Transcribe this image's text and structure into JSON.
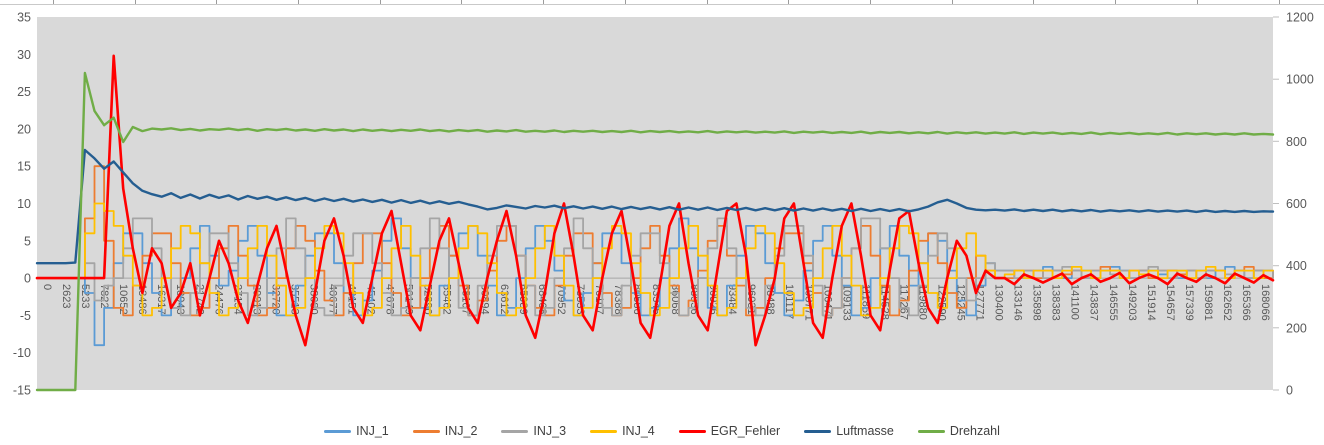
{
  "chart_data": {
    "type": "line",
    "title": "",
    "plot_bg": "#D9D9D9",
    "grid": "zero-line-only",
    "legend_position": "bottom",
    "axis_label_color": "#595959",
    "zero_line_color": "#A6A6A6",
    "left_axis": {
      "min": -15,
      "max": 35,
      "step": 5,
      "ticks": [
        35,
        30,
        25,
        20,
        15,
        10,
        5,
        0,
        -5,
        -10,
        -15
      ]
    },
    "right_axis": {
      "min": 0,
      "max": 1200,
      "step": 200,
      "ticks": [
        1200,
        1000,
        800,
        600,
        400,
        200,
        0
      ]
    },
    "x_range": [
      0,
      168066
    ],
    "n_points": 130,
    "x_labels": [
      "0",
      "2623",
      "5233",
      "7822",
      "10652",
      "13486",
      "16317",
      "18943",
      "21742",
      "24476",
      "27154",
      "29913",
      "32720",
      "35513",
      "38080",
      "40677",
      "43151",
      "45402",
      "47678",
      "50149",
      "52890",
      "55462",
      "58167",
      "60894",
      "63612",
      "65989",
      "68468",
      "70952",
      "73533",
      "76107",
      "78388",
      "80586",
      "83345",
      "86068",
      "88536",
      "90926",
      "93484",
      "96031",
      "98488",
      "101117",
      "103771",
      "106471",
      "109133",
      "111859",
      "114528",
      "117267",
      "119880",
      "122590",
      "125245",
      "127771",
      "130400",
      "133146",
      "135898",
      "138383",
      "141100",
      "143837",
      "146555",
      "149203",
      "151914",
      "154657",
      "157339",
      "159881",
      "162652",
      "165366",
      "168066"
    ],
    "series": [
      {
        "name": "INJ_1",
        "color": "#5B9BD5",
        "axis": "left",
        "interpolation": "step",
        "width": 1.8,
        "values": [
          0,
          0,
          0,
          0,
          0,
          -2,
          -9,
          -4,
          2,
          6,
          6,
          2,
          -2,
          -5,
          -4,
          0,
          4,
          7,
          3,
          -1,
          1,
          5,
          7,
          3,
          -2,
          -5,
          -5,
          -1,
          3,
          6,
          6,
          2,
          -2,
          -5,
          -3,
          1,
          5,
          8,
          4,
          0,
          -4,
          -5,
          -1,
          3,
          6,
          7,
          3,
          -1,
          -5,
          -4,
          0,
          4,
          7,
          5,
          1,
          -3,
          -5,
          -2,
          2,
          6,
          6,
          2,
          -2,
          -5,
          -4,
          0,
          4,
          8,
          4,
          0,
          -4,
          -5,
          -1,
          3,
          7,
          6,
          2,
          -2,
          -5,
          -3,
          1,
          5,
          7,
          3,
          -1,
          -5,
          -4,
          0,
          4,
          7,
          3,
          -1,
          2,
          6,
          5,
          1,
          -3,
          -5,
          -1,
          2,
          1,
          1,
          1,
          0,
          1,
          1.5,
          1,
          0,
          1,
          1,
          0,
          1,
          1.5,
          1,
          0,
          1,
          1,
          0.5,
          1,
          0,
          1,
          1,
          0,
          1,
          1.5,
          1,
          0,
          1,
          1,
          0.5
        ]
      },
      {
        "name": "INJ_2",
        "color": "#ED7D31",
        "axis": "left",
        "interpolation": "step",
        "width": 1.8,
        "values": [
          0,
          0,
          0,
          0,
          0,
          8,
          15,
          5,
          -4,
          -5,
          -1,
          3,
          6,
          6,
          2,
          -2,
          -5,
          -4,
          0,
          4,
          7,
          3,
          -1,
          -5,
          -4,
          0,
          4,
          7,
          5,
          1,
          -3,
          -5,
          -2,
          2,
          6,
          6,
          2,
          -2,
          -5,
          -4,
          0,
          4,
          7,
          3,
          -1,
          -5,
          -3,
          1,
          5,
          7,
          3,
          -1,
          -4,
          -5,
          -1,
          3,
          6,
          6,
          2,
          -2,
          -5,
          -4,
          0,
          4,
          7,
          3,
          -1,
          -5,
          -3,
          1,
          5,
          7,
          3,
          -1,
          -5,
          -4,
          0,
          4,
          6,
          6,
          2,
          -2,
          -5,
          -4,
          0,
          4,
          7,
          3,
          -1,
          -5,
          -3,
          1,
          5,
          6,
          2,
          -2,
          -4,
          0,
          3,
          1,
          0,
          0,
          1,
          1,
          0,
          1,
          1,
          0.5,
          1,
          0,
          1,
          1.5,
          1,
          0,
          1,
          1,
          0,
          1,
          1,
          0.5,
          1,
          0,
          1,
          1,
          0,
          1,
          1.5,
          1,
          0,
          1
        ]
      },
      {
        "name": "INJ_3",
        "color": "#A5A5A5",
        "axis": "left",
        "interpolation": "step",
        "width": 1.8,
        "values": [
          0,
          0,
          0,
          0,
          0,
          2,
          -3,
          -1,
          0,
          4,
          8,
          8,
          4,
          0,
          -4,
          -5,
          -2,
          2,
          6,
          6,
          2,
          -2,
          -5,
          -4,
          0,
          4,
          8,
          4,
          0,
          -4,
          -5,
          -1,
          3,
          6,
          6,
          2,
          -2,
          -5,
          -4,
          0,
          4,
          8,
          4,
          0,
          -4,
          -5,
          -1,
          3,
          7,
          7,
          3,
          -1,
          -5,
          -4,
          0,
          4,
          8,
          4,
          0,
          -4,
          -5,
          -1,
          3,
          6,
          6,
          2,
          -2,
          -5,
          -4,
          0,
          4,
          8,
          4,
          0,
          -4,
          -5,
          -1,
          3,
          7,
          7,
          3,
          -1,
          -5,
          -4,
          0,
          4,
          8,
          8,
          4,
          0,
          -4,
          -5,
          -1,
          3,
          6,
          4,
          0,
          -3,
          0,
          2,
          1,
          1,
          0,
          1,
          1,
          0,
          1,
          1.5,
          1,
          0,
          1,
          1,
          0.5,
          1,
          0,
          1,
          1.5,
          1,
          0,
          1,
          1,
          0,
          1,
          1,
          0.5,
          1,
          0,
          1,
          1,
          0
        ]
      },
      {
        "name": "INJ_4",
        "color": "#FFC000",
        "axis": "left",
        "interpolation": "step",
        "width": 1.8,
        "values": [
          0,
          0,
          0,
          0,
          0,
          6,
          10,
          9,
          7,
          3,
          -1,
          -5,
          -4,
          0,
          4,
          7,
          6,
          2,
          -2,
          -5,
          -4,
          0,
          4,
          7,
          3,
          -1,
          -5,
          -4,
          0,
          4,
          7,
          6,
          2,
          -2,
          -5,
          -4,
          0,
          4,
          7,
          3,
          -1,
          -5,
          -4,
          0,
          4,
          7,
          6,
          2,
          -2,
          -5,
          -4,
          0,
          4,
          7,
          3,
          -1,
          -5,
          -4,
          0,
          4,
          7,
          6,
          2,
          -2,
          -5,
          -4,
          0,
          4,
          7,
          3,
          -1,
          -5,
          -4,
          0,
          4,
          7,
          6,
          2,
          -2,
          -5,
          -4,
          0,
          4,
          7,
          3,
          -1,
          -5,
          -4,
          0,
          4,
          7,
          6,
          2,
          -2,
          -4,
          0,
          4,
          6,
          3,
          1,
          0,
          0.5,
          1,
          0,
          1,
          1,
          0,
          1,
          1.5,
          1,
          0,
          1,
          1,
          0,
          1,
          0.5,
          1,
          0,
          1,
          1,
          0,
          1,
          1.5,
          1,
          0,
          1,
          1,
          0,
          1,
          1
        ]
      },
      {
        "name": "EGR_Fehler",
        "color": "#FF0000",
        "axis": "left",
        "interpolation": "linear",
        "width": 2.6,
        "values": [
          0,
          0,
          0,
          0,
          0,
          0,
          0,
          0,
          29.8,
          12,
          4,
          -2,
          4,
          2,
          -4,
          -2,
          2,
          -5,
          0,
          5,
          2,
          -3,
          -6,
          -1,
          4,
          7,
          1,
          -5,
          -9,
          -2,
          5,
          8,
          3,
          -4,
          -6,
          0,
          6,
          9,
          2,
          -5,
          -7,
          -1,
          5,
          8,
          2,
          -4,
          -6,
          0,
          5,
          9,
          3,
          -5,
          -8,
          -2,
          6,
          10,
          3,
          -5,
          -7,
          0,
          6,
          9,
          2,
          -6,
          -8,
          -1,
          7,
          10,
          2,
          -5,
          -7,
          1,
          9,
          10,
          3,
          -9,
          -5,
          0,
          8,
          10,
          2,
          -6,
          -8,
          0,
          7,
          10,
          3,
          -5,
          -7,
          1,
          8,
          9,
          2,
          -4,
          -6,
          0,
          5,
          3,
          -2,
          1,
          0,
          0,
          -0.8,
          0.5,
          0,
          -0.6,
          0,
          0.6,
          -0.8,
          0,
          0.5,
          -0.5,
          0,
          0.7,
          -0.7,
          0,
          0.5,
          0,
          -0.8,
          0.6,
          0,
          -0.5,
          0.5,
          0,
          -0.7,
          0.6,
          0,
          -0.6,
          0.4,
          -0.3
        ]
      },
      {
        "name": "Luftmasse",
        "color": "#255E91",
        "axis": "right",
        "interpolation": "linear",
        "width": 2.4,
        "values": [
          408,
          408,
          408,
          408,
          410,
          772,
          745,
          712,
          735,
          700,
          665,
          641,
          630,
          622,
          633,
          618,
          629,
          616,
          628,
          618,
          626,
          613,
          624,
          615,
          622,
          612,
          620,
          611,
          618,
          608,
          616,
          608,
          615,
          606,
          613,
          605,
          612,
          603,
          611,
          602,
          609,
          600,
          607,
          599,
          605,
          597,
          590,
          581,
          586,
          594,
          589,
          584,
          592,
          587,
          593,
          585,
          591,
          584,
          590,
          583,
          590,
          582,
          589,
          582,
          588,
          581,
          588,
          580,
          587,
          580,
          587,
          579,
          586,
          579,
          586,
          578,
          585,
          578,
          585,
          577,
          584,
          577,
          584,
          577,
          583,
          576,
          583,
          576,
          582,
          576,
          582,
          575,
          581,
          590,
          604,
          612,
          600,
          586,
          580,
          578,
          580,
          577,
          581,
          576,
          580,
          576,
          580,
          575,
          579,
          575,
          579,
          574,
          578,
          575,
          578,
          574,
          578,
          574,
          577,
          574,
          577,
          573,
          577,
          573,
          576,
          573,
          576,
          573,
          575,
          574
        ]
      },
      {
        "name": "Drehzahl",
        "color": "#70AD47",
        "axis": "right",
        "interpolation": "linear",
        "width": 2.4,
        "values": [
          0,
          0,
          0,
          0,
          0,
          1020,
          898,
          852,
          876,
          798,
          846,
          833,
          841,
          838,
          842,
          836,
          840,
          835,
          839,
          837,
          841,
          836,
          840,
          834,
          839,
          836,
          840,
          835,
          838,
          834,
          839,
          835,
          838,
          833,
          838,
          834,
          837,
          833,
          837,
          834,
          838,
          833,
          836,
          832,
          836,
          833,
          836,
          831,
          835,
          832,
          836,
          831,
          834,
          831,
          835,
          830,
          834,
          831,
          834,
          830,
          833,
          830,
          834,
          829,
          833,
          830,
          833,
          829,
          832,
          829,
          833,
          828,
          832,
          829,
          832,
          828,
          831,
          828,
          832,
          827,
          831,
          828,
          831,
          827,
          830,
          827,
          831,
          826,
          830,
          827,
          830,
          826,
          829,
          826,
          830,
          825,
          829,
          826,
          829,
          825,
          828,
          825,
          829,
          824,
          828,
          825,
          828,
          824,
          827,
          824,
          828,
          823,
          827,
          824,
          827,
          823,
          826,
          823,
          827,
          822,
          826,
          823,
          826,
          822,
          825,
          822,
          826,
          822,
          824,
          822
        ]
      }
    ]
  },
  "legend": {
    "items": [
      {
        "label": "INJ_1"
      },
      {
        "label": "INJ_2"
      },
      {
        "label": "INJ_3"
      },
      {
        "label": "INJ_4"
      },
      {
        "label": "EGR_Fehler"
      },
      {
        "label": "Luftmasse"
      },
      {
        "label": "Drehzahl"
      }
    ]
  }
}
